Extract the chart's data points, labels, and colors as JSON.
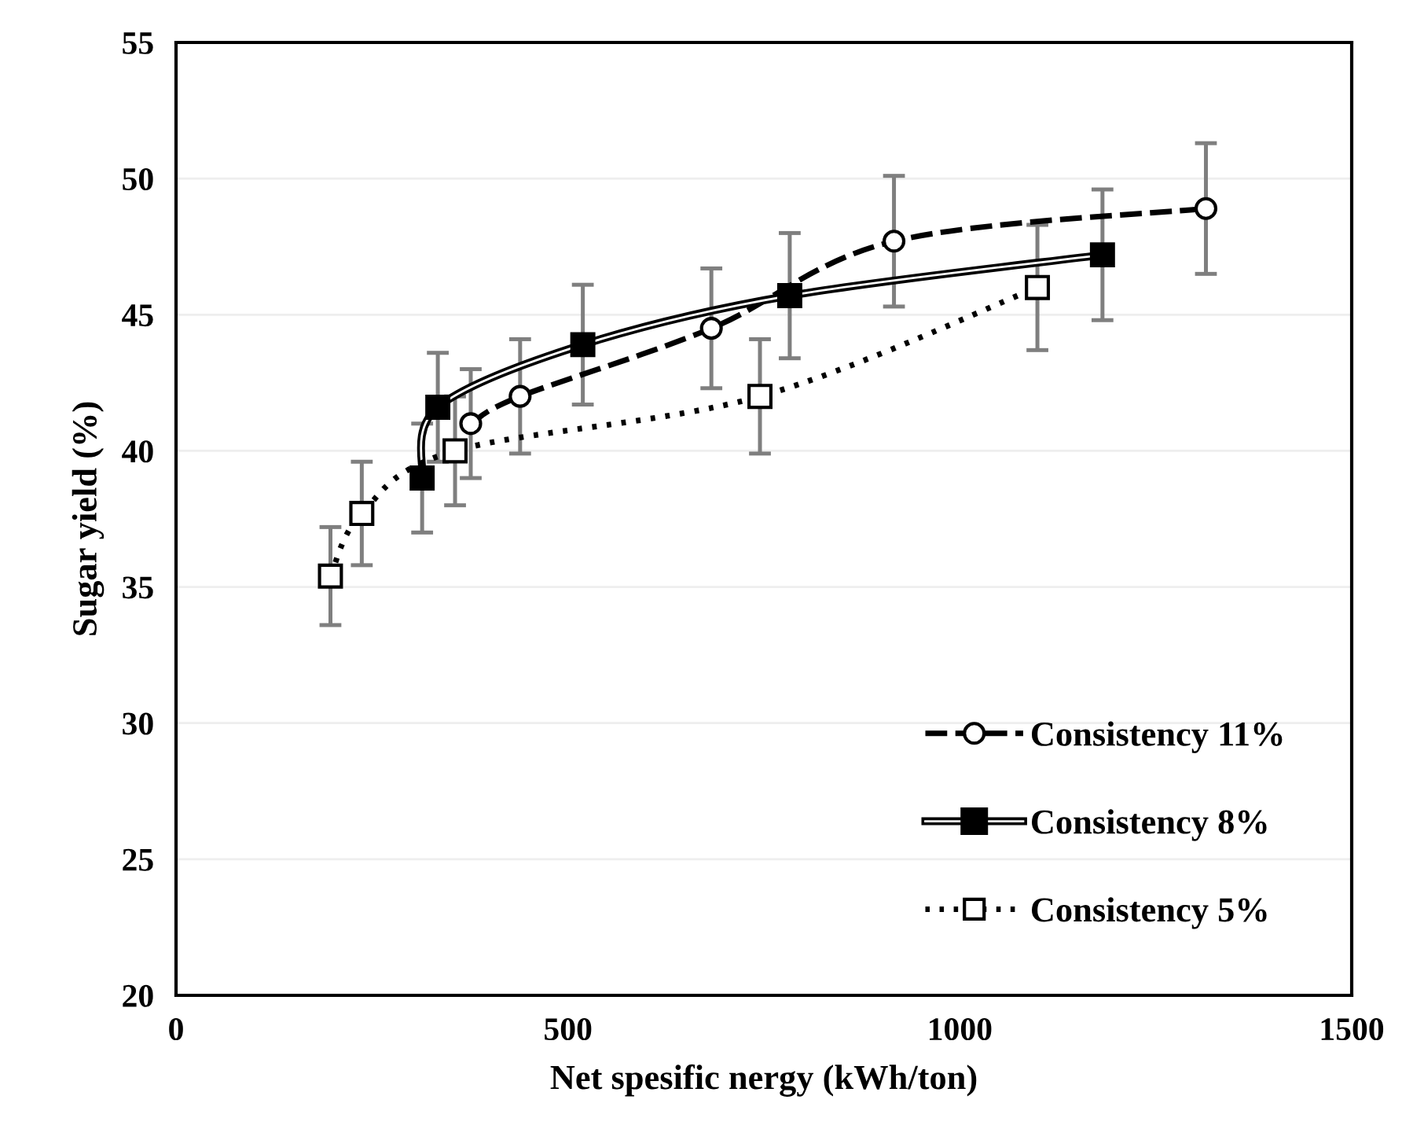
{
  "chart_data": {
    "type": "line",
    "xlabel": "Net spesific nergy (kWh/ton)",
    "ylabel": "Sugar yield (%)",
    "xlim": [
      0,
      1500
    ],
    "xticks": [
      0,
      500,
      1000,
      1500
    ],
    "ylim": [
      20,
      55
    ],
    "yticks": [
      20,
      25,
      30,
      35,
      40,
      45,
      50,
      55
    ],
    "grid": "y",
    "legend": "bottom right",
    "series": [
      {
        "name": "Consistency 11%",
        "color": "#000000",
        "marker": "circle",
        "line_style": "dashed",
        "x": [
          376,
          439,
          683,
          916,
          1314
        ],
        "values": [
          41.0,
          42.0,
          44.5,
          47.7,
          48.9
        ],
        "errors": [
          2.0,
          2.1,
          2.2,
          2.4,
          2.4
        ]
      },
      {
        "name": "Consistency 8%",
        "color": "#000000",
        "marker": "square",
        "line_style": "solid",
        "x": [
          314,
          334,
          519,
          783,
          1182
        ],
        "values": [
          39.0,
          41.6,
          43.9,
          45.7,
          47.2
        ],
        "errors": [
          2.0,
          2.0,
          2.2,
          2.3,
          2.4
        ]
      },
      {
        "name": "Consistency 5%",
        "color": "#000000",
        "marker": "square",
        "line_style": "dotted",
        "x": [
          197,
          237,
          356,
          745,
          1099
        ],
        "values": [
          35.4,
          37.7,
          40.0,
          42.0,
          46.0
        ],
        "errors": [
          1.8,
          1.9,
          2.0,
          2.1,
          2.3
        ]
      }
    ]
  }
}
